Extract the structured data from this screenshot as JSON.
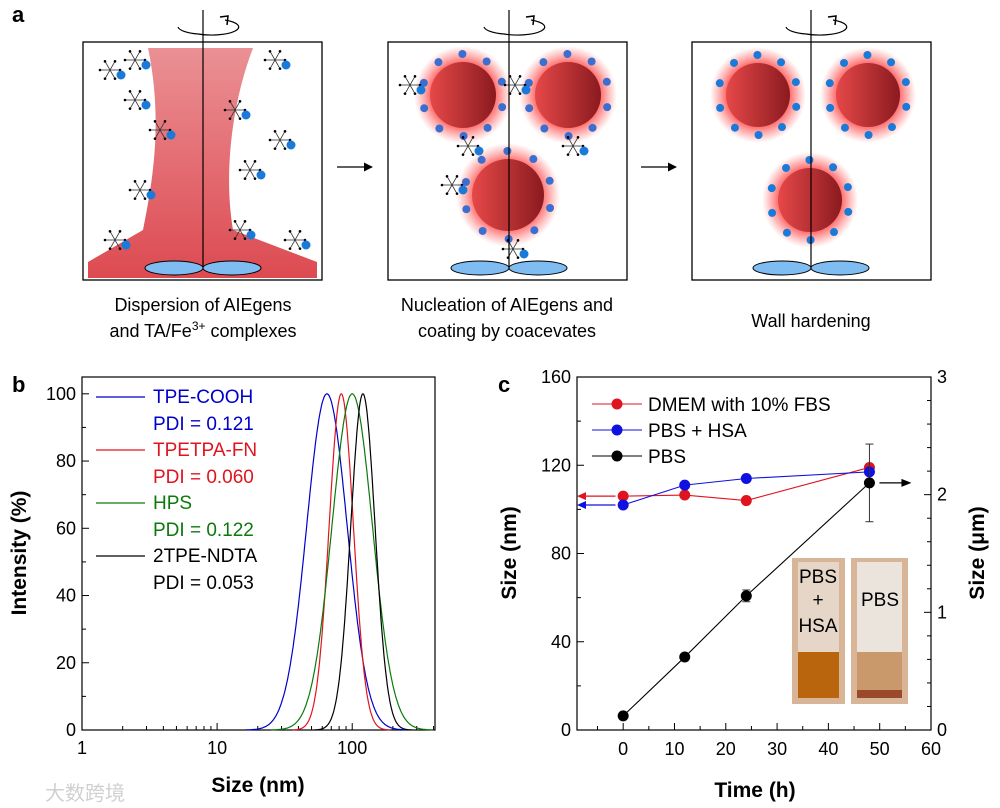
{
  "panel_a": {
    "label": "a",
    "steps": [
      {
        "caption_line1": "Dispersion of AIEgens",
        "caption_line2": "and TA/Fe",
        "caption_sup": "3+",
        "caption_line2_end": " complexes"
      },
      {
        "caption_line1": "Nucleation of AIEgens and",
        "caption_line2": "coating by coacevates"
      },
      {
        "caption_line1": "Wall hardening"
      }
    ],
    "colors": {
      "dye": "#d9363e",
      "propeller": "#7fbcf2",
      "ligand": "#1a7ad9"
    }
  },
  "watermark": "大数跨境",
  "chart_data": [
    {
      "panel_label": "b",
      "type": "line",
      "xlabel": "Size (nm)",
      "ylabel": "Intensity (%)",
      "xscale": "log",
      "xlim": [
        1,
        410
      ],
      "ylim": [
        0,
        105
      ],
      "xticks": [
        "1",
        "10",
        "100"
      ],
      "yticks": [
        "0",
        "20",
        "40",
        "60",
        "80",
        "100"
      ],
      "legend_placement": "top-left",
      "series": [
        {
          "name": "TPE-COOH",
          "pdi": "PDI = 0.121",
          "color": "#0000cc",
          "peak_nm": 65,
          "log_sigma": 0.15,
          "peak_intensity": 100
        },
        {
          "name": "TPETPA-FN",
          "pdi": "PDI = 0.060",
          "color": "#e0141e",
          "peak_nm": 83,
          "log_sigma": 0.09,
          "peak_intensity": 100
        },
        {
          "name": "HPS",
          "pdi": "PDI = 0.122",
          "color": "#0b7a0b",
          "peak_nm": 100,
          "log_sigma": 0.15,
          "peak_intensity": 100
        },
        {
          "name": "2TPE-NDTA",
          "pdi": "PDI = 0.053",
          "color": "#000000",
          "peak_nm": 120,
          "log_sigma": 0.09,
          "peak_intensity": 100
        }
      ]
    },
    {
      "panel_label": "c",
      "type": "line",
      "xlabel": "Time (h)",
      "ylabel": "Size (nm)",
      "y2label": "Size (μm)",
      "xlim": [
        -9,
        60
      ],
      "ylim": [
        0,
        160
      ],
      "y2lim": [
        0,
        3
      ],
      "xticks": [
        "0",
        "10",
        "20",
        "30",
        "40",
        "50",
        "60"
      ],
      "yticks": [
        "0",
        "40",
        "80",
        "120",
        "160"
      ],
      "y2ticks": [
        "0",
        "1",
        "2",
        "3"
      ],
      "legend_placement": "top-left",
      "series": [
        {
          "name": "DMEM with 10% FBS",
          "color": "#e0141e",
          "axis": "left",
          "x": [
            0,
            12,
            24,
            48
          ],
          "y": [
            106,
            106.5,
            104,
            119
          ],
          "err": [
            1,
            1,
            0.5,
            1
          ]
        },
        {
          "name": "PBS + HSA",
          "color": "#1010e0",
          "axis": "left",
          "x": [
            0,
            12,
            24,
            48
          ],
          "y": [
            102,
            111,
            114,
            117
          ],
          "err": [
            1,
            0.5,
            0.5,
            0.5
          ]
        },
        {
          "name": "PBS",
          "color": "#000000",
          "axis": "right",
          "x": [
            0,
            12,
            24,
            48
          ],
          "y": [
            0.12,
            0.62,
            1.14,
            2.1
          ],
          "err": [
            0,
            0,
            0.05,
            0.33
          ]
        }
      ],
      "inset": {
        "vial1_line1": "PBS",
        "vial1_line2": "+",
        "vial1_line3": "HSA",
        "vial2_label": "PBS"
      }
    }
  ]
}
